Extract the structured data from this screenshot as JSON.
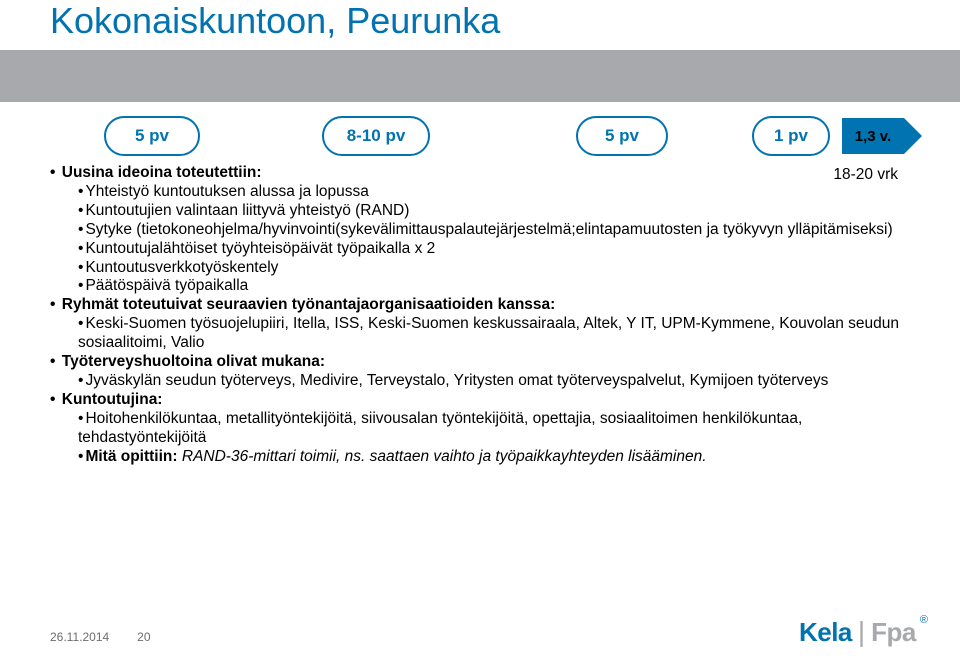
{
  "title": "Kokonaiskuntoon, Peurunka",
  "timeline": {
    "pill1": "5 pv",
    "pill2": "8-10 pv",
    "pill3": "5 pv",
    "pill4": "1 pv",
    "arrow": "1,3 v."
  },
  "subLabel": "18-20 vrk",
  "content": {
    "uusina_heading": "Uusina ideoina toteutettiin:",
    "uusina": [
      "Yhteistyö kuntoutuksen alussa ja lopussa",
      "Kuntoutujien valintaan liittyvä yhteistyö (RAND)",
      "Sytyke (tietokoneohjelma/hyvinvointi(sykevälimittauspalautejärjestelmä;elintapamuutosten ja työkyvyn ylläpitämiseksi)",
      "Kuntoutujalähtöiset työyhteisöpäivät työpaikalla x 2",
      "Kuntoutusverkkotyöskentely",
      "Päätöspäivä työpaikalla"
    ],
    "ryhmat_heading": "Ryhmät toteutuivat seuraavien työnantajaorganisaatioiden kanssa:",
    "ryhmat": [
      "Keski-Suomen työsuojelupiiri, Itella, ISS, Keski-Suomen keskussairaala, Altek, Y IT, UPM-Kymmene, Kouvolan seudun sosiaalitoimi, Valio"
    ],
    "tyoterveys_heading": "Työterveyshuoltoina olivat mukana:",
    "tyoterveys": [
      "Jyväskylän seudun työterveys, Medivire, Terveystalo, Yritysten omat työterveyspalvelut, Kymijoen työterveys"
    ],
    "kuntoutujina_heading": "Kuntoutujina:",
    "kuntoutujina_main": "Hoitohenkilökuntaa, metallityöntekijöitä, siivousalan työntekijöitä, opettajia, sosiaalitoimen henkilökuntaa, tehdastyöntekijöitä",
    "mita_opittiin_label": "Mitä opittiin:",
    "mita_opittiin_text": " RAND-36-mittari toimii, ns. saattaen vaihto ja työpaikkayhteyden lisääminen."
  },
  "footer": {
    "date": "26.11.2014",
    "page": "20"
  },
  "logo": {
    "brand1": "Kela",
    "brand2": "Fpa",
    "reg": "®"
  },
  "colors": {
    "blue": "#0073b0",
    "gray_band": "#a7a9ac",
    "text": "#000000",
    "footer_text": "#6d6e71"
  }
}
